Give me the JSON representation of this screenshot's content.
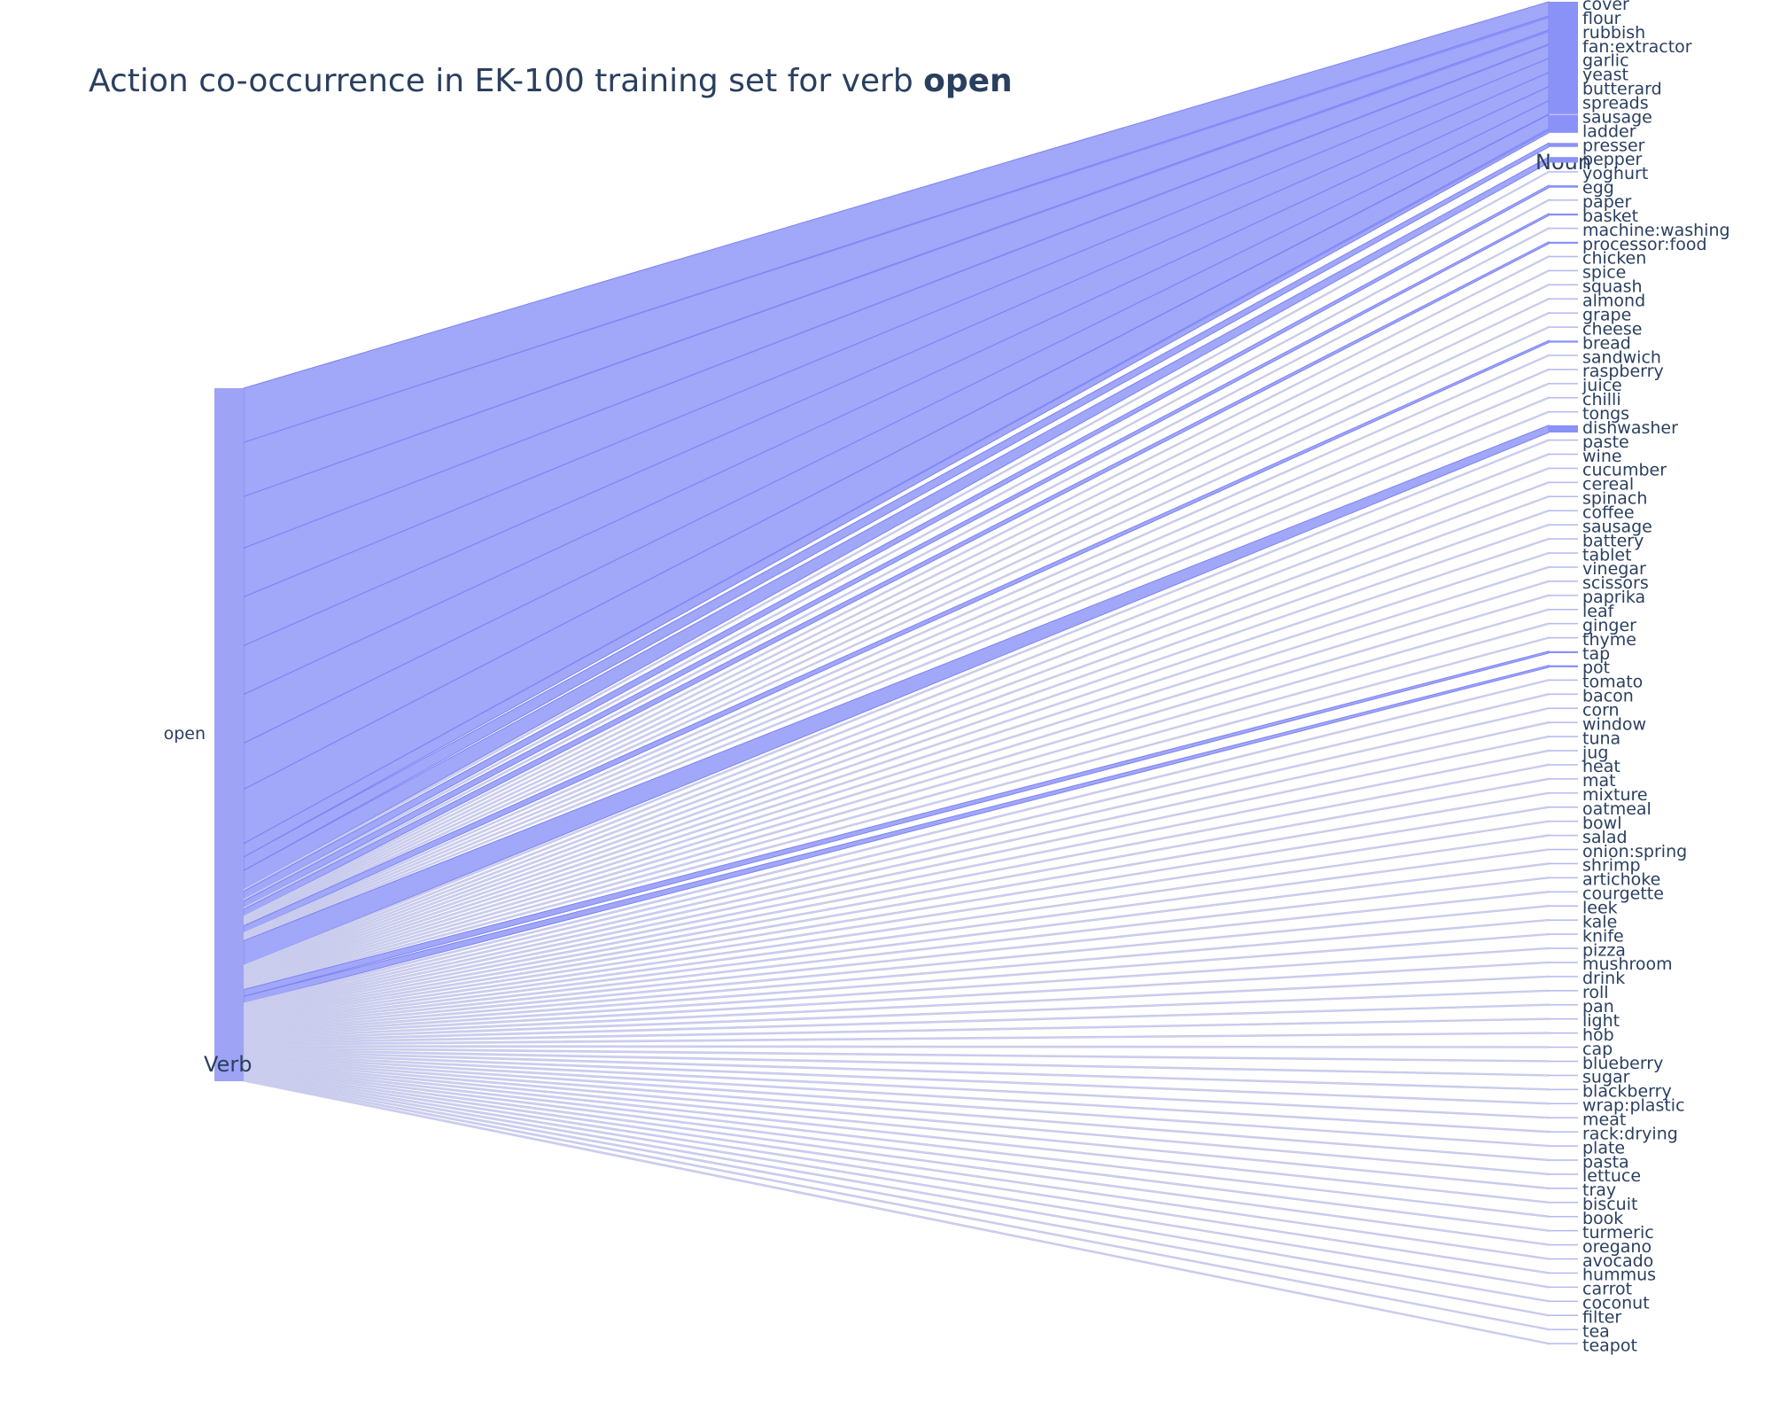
{
  "chart_data": {
    "type": "parallel-categories",
    "title_prefix": "Action co-occurrence in EK-100 training set for verb ",
    "title_emphasis": "open",
    "dimensions": [
      {
        "label": "Verb",
        "categories": [
          "open"
        ]
      },
      {
        "label": "Noun",
        "categories": [
          "cover",
          "flour",
          "rubbish",
          "fan:extractor",
          "garlic",
          "yeast",
          "butterard",
          "spreads",
          "sausage",
          "ladder",
          "presser",
          "pepper",
          "yoghurt",
          "egg",
          "paper",
          "basket",
          "machine:washing",
          "processor:food",
          "chicken",
          "spice",
          "squash",
          "almond",
          "grape",
          "cheese",
          "bread",
          "sandwich",
          "raspberry",
          "juice",
          "chilli",
          "tongs",
          "dishwasher",
          "paste",
          "wine",
          "cucumber",
          "cereal",
          "spinach",
          "coffee",
          "sausage",
          "battery",
          "tablet",
          "vinegar",
          "scissors",
          "paprika",
          "leaf",
          "ginger",
          "thyme",
          "tap",
          "pot",
          "tomato",
          "bacon",
          "corn",
          "window",
          "tuna",
          "jug",
          "heat",
          "mat",
          "mixture",
          "oatmeal",
          "bowl",
          "salad",
          "onion:spring",
          "shrimp",
          "artichoke",
          "courgette",
          "leek",
          "kale",
          "knife",
          "pizza",
          "mushroom",
          "drink",
          "roll",
          "pan",
          "light",
          "hob",
          "cap",
          "blueberry",
          "sugar",
          "blackberry",
          "wrap:plastic",
          "meat",
          "rack:drying",
          "plate",
          "pasta",
          "lettuce",
          "tray",
          "biscuit",
          "book",
          "turmeric",
          "oregano",
          "avocado",
          "hummus",
          "carrot",
          "coconut",
          "filter",
          "tea",
          "teapot"
        ]
      }
    ],
    "color": "#636efa"
  }
}
